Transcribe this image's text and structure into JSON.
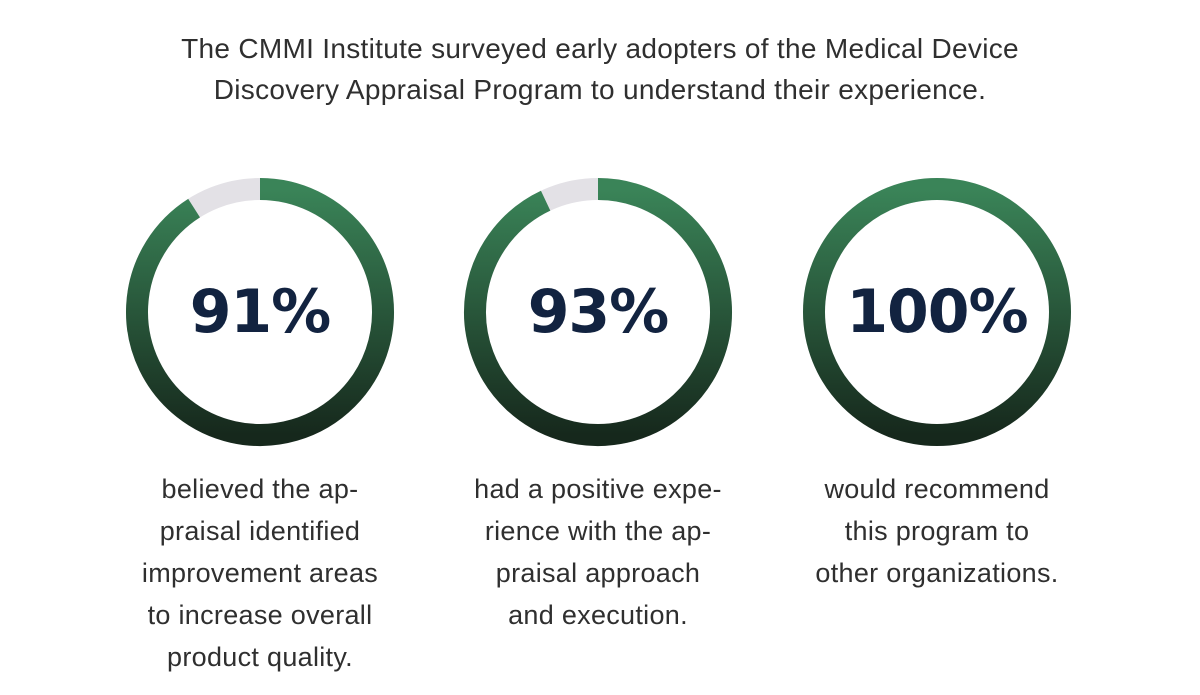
{
  "intro": {
    "line1": "The CMMI Institute surveyed early adopters of the Medical Device",
    "line2": "Discovery Appraisal Program to understand their experience."
  },
  "colors": {
    "ring_top": "#3a8458",
    "ring_bottom": "#16281c",
    "track": "#e3e1e6",
    "number": "#122340"
  },
  "chart_data": [
    {
      "type": "pie",
      "value": 91,
      "label": "91%",
      "desc_lines": [
        "believed the ap-",
        "praisal identified",
        "improvement areas",
        "to increase overall",
        "product quality."
      ]
    },
    {
      "type": "pie",
      "value": 93,
      "label": "93%",
      "desc_lines": [
        "had a positive expe-",
        "rience with the ap-",
        "praisal approach",
        "and execution."
      ]
    },
    {
      "type": "pie",
      "value": 100,
      "label": "100%",
      "desc_lines": [
        "would recommend",
        "this program to",
        "other organizations."
      ]
    }
  ]
}
